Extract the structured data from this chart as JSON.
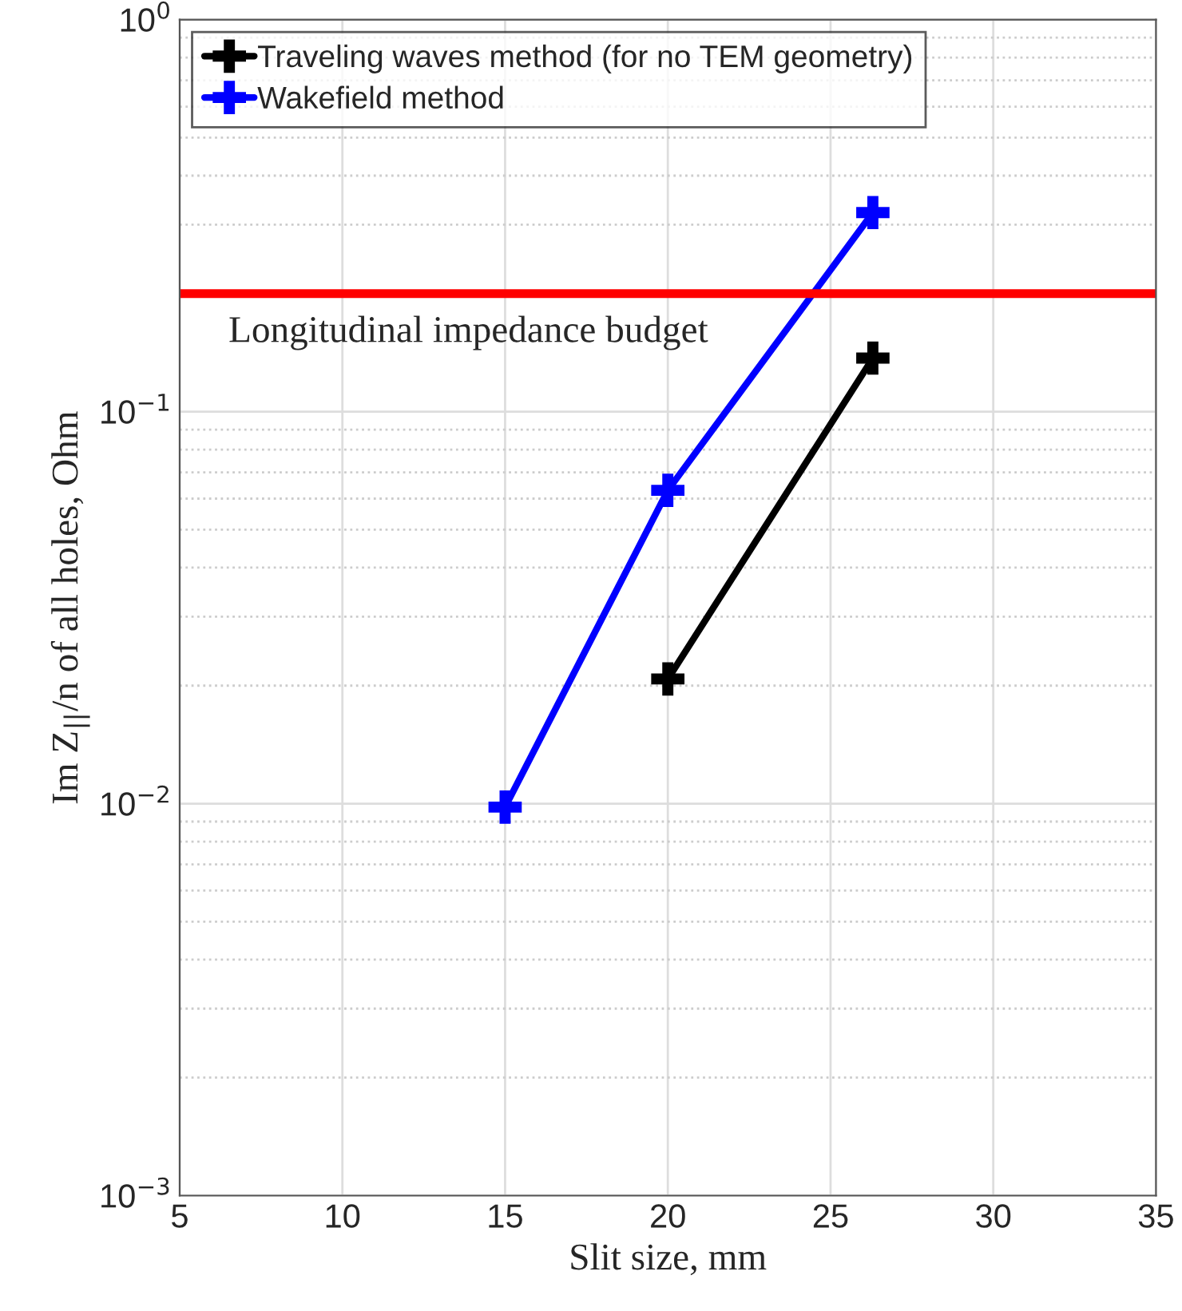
{
  "chart_data": {
    "type": "line",
    "xlabel": "Slit size, mm",
    "ylabel": "Im Z$_{||}$/n of all holes, Ohm",
    "series": [
      {
        "name": "Traveling waves method (for no TEM geometry)",
        "color": "#000000",
        "x": [
          20,
          26.3
        ],
        "values": [
          0.0208,
          0.137
        ]
      },
      {
        "name": "Wakefield method",
        "color": "#0000ff",
        "x": [
          15,
          20,
          26.3
        ],
        "values": [
          0.0098,
          0.063,
          0.322
        ]
      }
    ],
    "log": "y",
    "xlim": [
      5,
      35
    ],
    "xticks": [
      5,
      10,
      15,
      20,
      25,
      30,
      35
    ],
    "ylim": [
      0.001,
      1
    ],
    "yticks": [
      {
        "value": 0.001,
        "label": "10$^{−3}$"
      },
      {
        "value": 0.01,
        "label": "10$^{−2}$"
      },
      {
        "value": 0.1,
        "label": "10$^{−1}$"
      },
      {
        "value": 1,
        "label": "10$^{0}$"
      }
    ],
    "ref_lines": [
      {
        "axis": "y",
        "value": 0.2,
        "label": "Longitudinal impedance budget",
        "color": "#ff0000",
        "line_style": "solid"
      }
    ],
    "grid": true,
    "legend": "top left",
    "marker": "cross",
    "line_style": "solid"
  }
}
